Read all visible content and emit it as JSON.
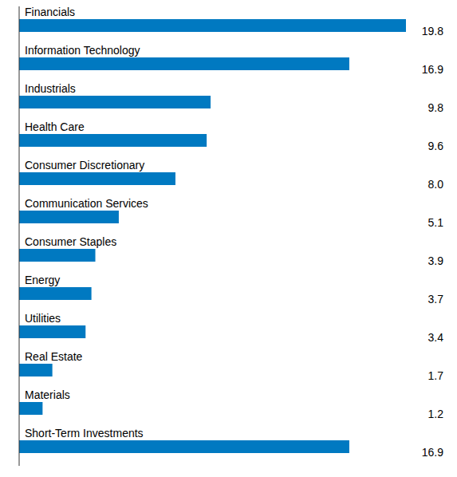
{
  "chart_data": {
    "type": "bar",
    "orientation": "horizontal",
    "categories": [
      "Financials",
      "Information Technology",
      "Industrials",
      "Health Care",
      "Consumer Discretionary",
      "Communication Services",
      "Consumer Staples",
      "Energy",
      "Utilities",
      "Real Estate",
      "Materials",
      "Short-Term Investments"
    ],
    "values": [
      19.8,
      16.9,
      9.8,
      9.6,
      8.0,
      5.1,
      3.9,
      3.7,
      3.4,
      1.7,
      1.2,
      16.9
    ],
    "value_labels": [
      "19.8",
      "16.9",
      "9.8",
      "9.6",
      "8.0",
      "5.1",
      "3.9",
      "3.7",
      "3.4",
      "1.7",
      "1.2",
      "16.9"
    ],
    "color": "#0079c1",
    "data_labels": true,
    "tick_labels": false
  }
}
